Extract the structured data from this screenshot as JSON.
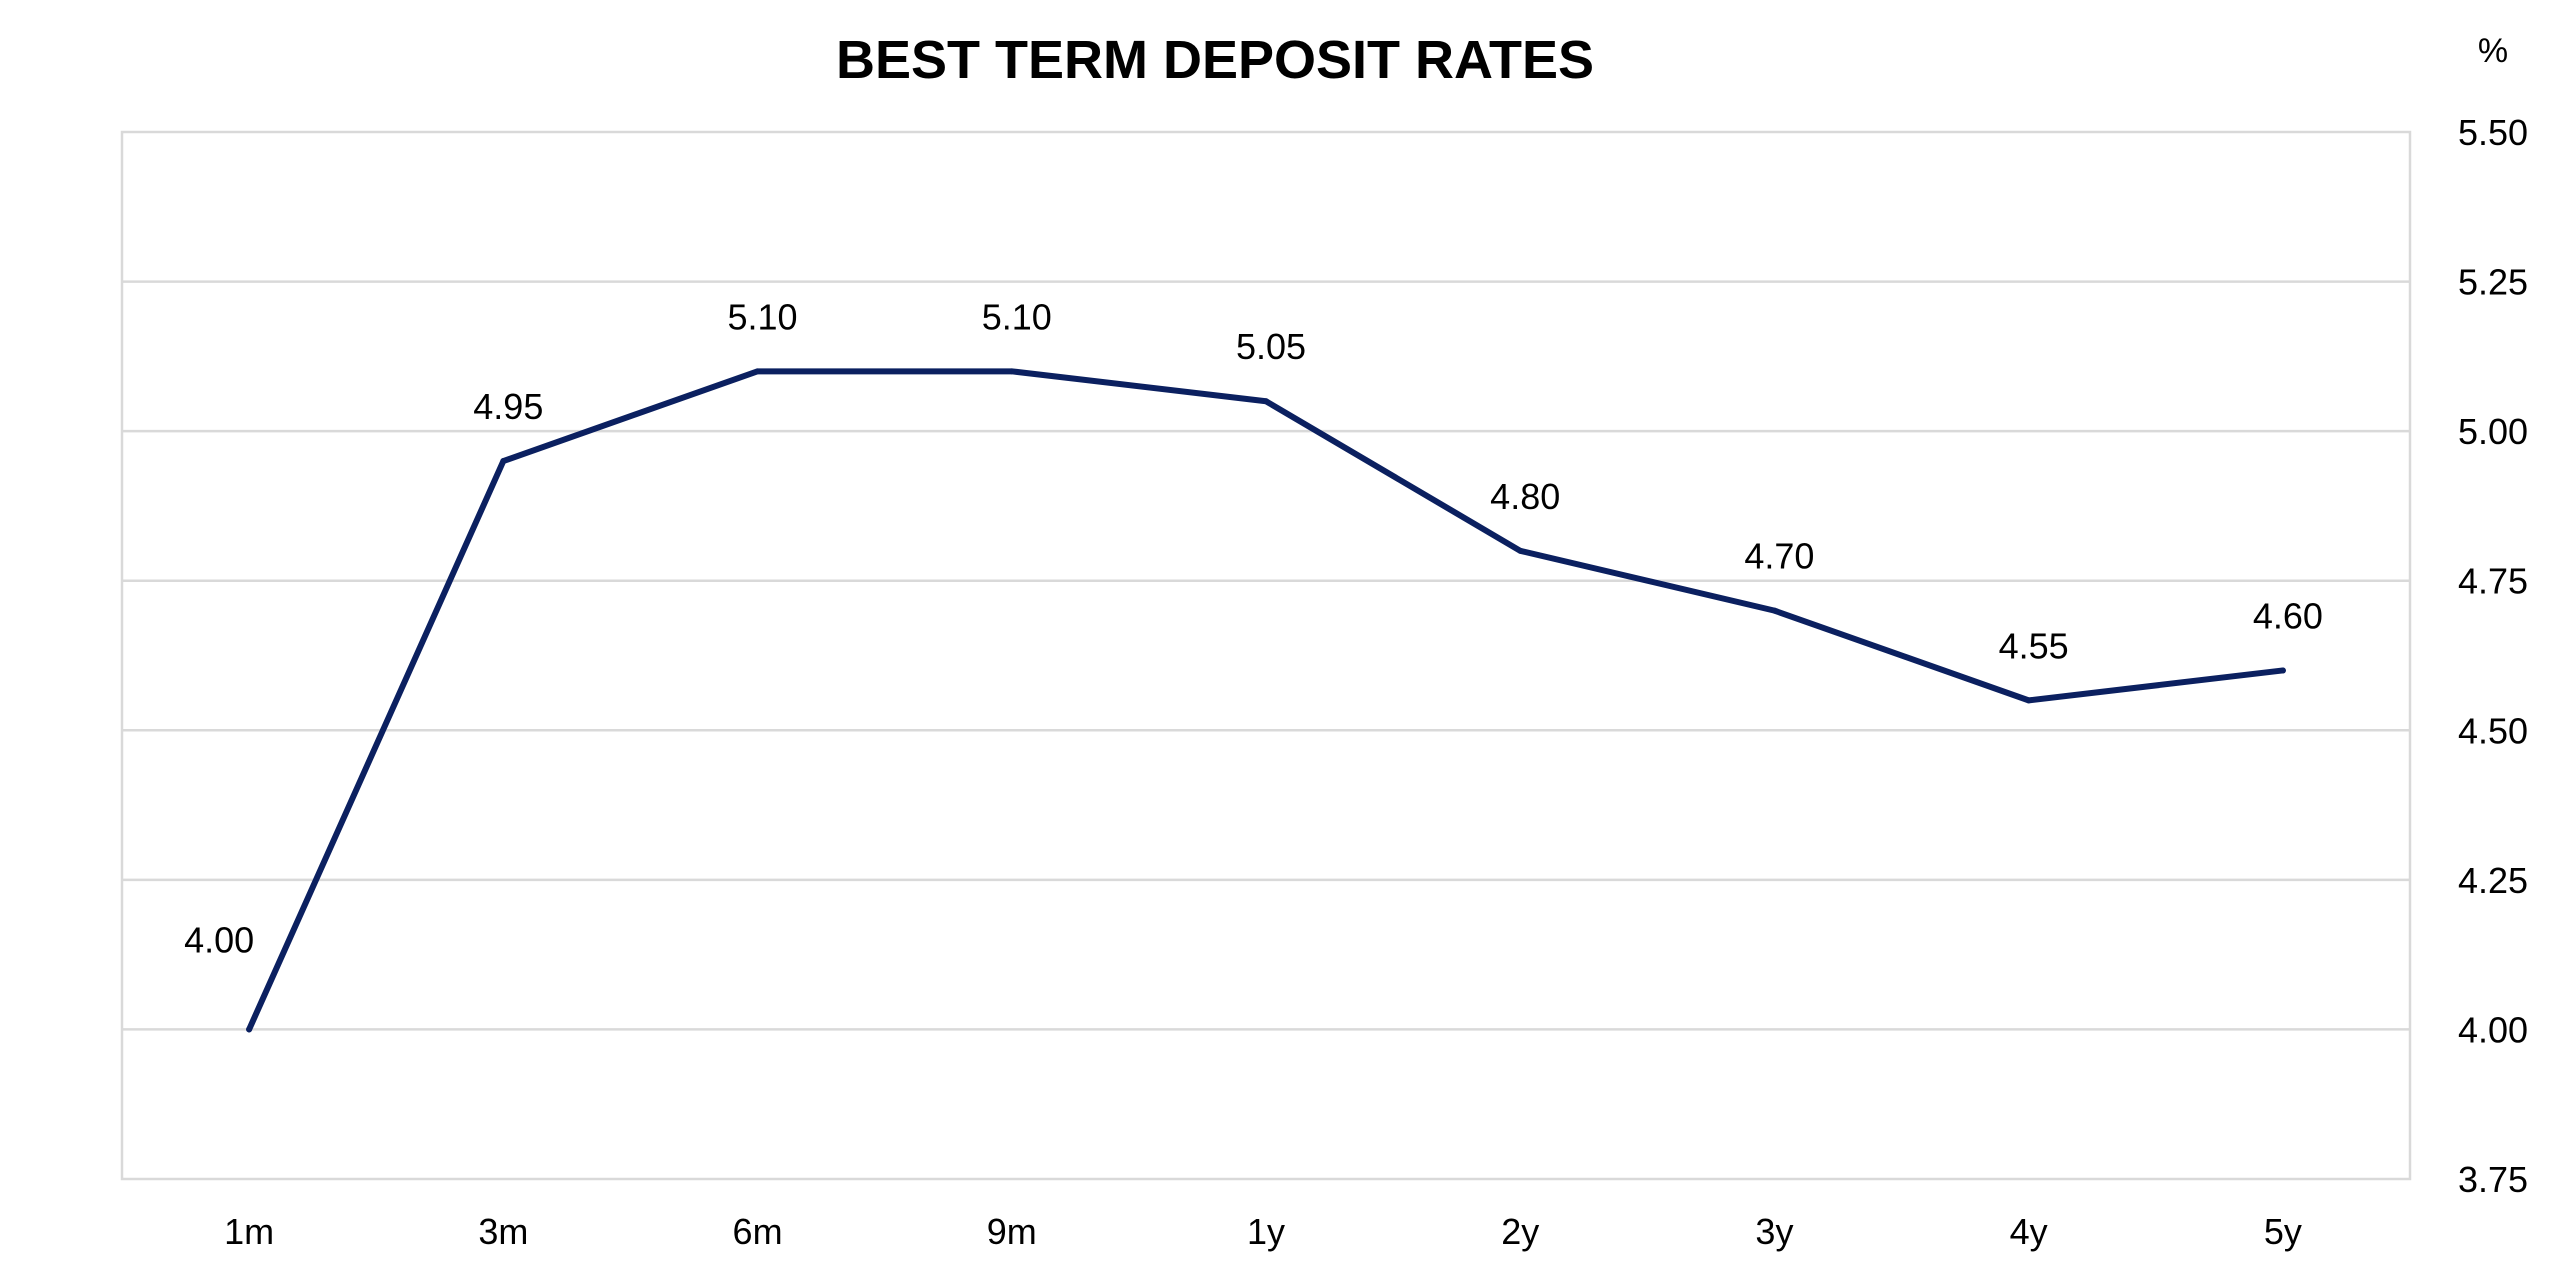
{
  "chart_data": {
    "type": "line",
    "title": "BEST TERM DEPOSIT RATES",
    "unit_label": "%",
    "categories": [
      "1m",
      "3m",
      "6m",
      "9m",
      "1y",
      "2y",
      "3y",
      "4y",
      "5y"
    ],
    "series": [
      {
        "values": [
          4.0,
          4.95,
          5.1,
          5.1,
          5.05,
          4.8,
          4.7,
          4.55,
          4.6
        ],
        "data_labels": [
          "4.00",
          "4.95",
          "5.10",
          "5.10",
          "5.05",
          "4.80",
          "4.70",
          "4.55",
          "4.60"
        ],
        "color": "#0b2060"
      }
    ],
    "ylim": [
      3.75,
      5.5
    ],
    "yticks": [
      "3.75",
      "4.00",
      "4.25",
      "4.50",
      "4.75",
      "5.00",
      "5.25",
      "5.50"
    ],
    "y_axis_side": "right",
    "grid": true,
    "legend": false
  }
}
